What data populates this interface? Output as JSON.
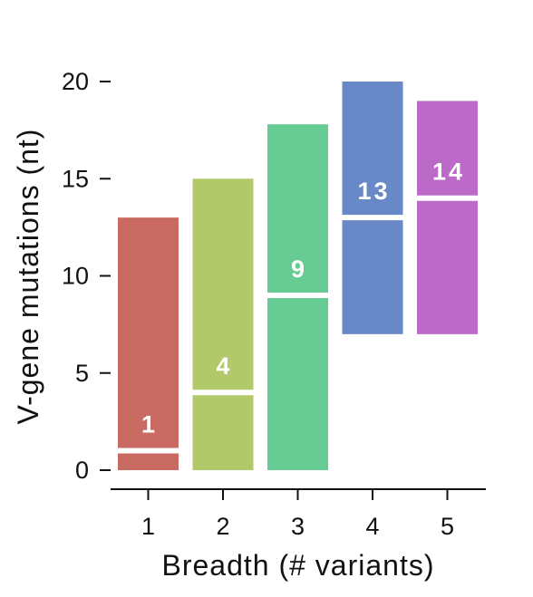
{
  "chart_data": {
    "type": "bar",
    "xlabel": "Breadth (#  variants)",
    "ylabel": "V-gene mutations (nt)",
    "categories": [
      "1",
      "2",
      "3",
      "4",
      "5"
    ],
    "ylim": [
      0,
      20
    ],
    "yticks": [
      "0",
      "5",
      "10",
      "15",
      "20"
    ],
    "bars": [
      {
        "category": "1",
        "low": 0,
        "high": 13,
        "median": 1,
        "label": "1",
        "color": "#c96b62"
      },
      {
        "category": "2",
        "low": 0,
        "high": 15,
        "median": 4,
        "label": "4",
        "color": "#b2c969"
      },
      {
        "category": "3",
        "low": 0,
        "high": 17.8,
        "median": 9,
        "label": "9",
        "color": "#66cc94"
      },
      {
        "category": "4",
        "low": 7,
        "high": 20,
        "median": 13,
        "label": "13",
        "color": "#6888c8"
      },
      {
        "category": "5",
        "low": 7,
        "high": 19,
        "median": 14,
        "label": "14",
        "color": "#bb6ac8"
      }
    ],
    "grid": false
  }
}
